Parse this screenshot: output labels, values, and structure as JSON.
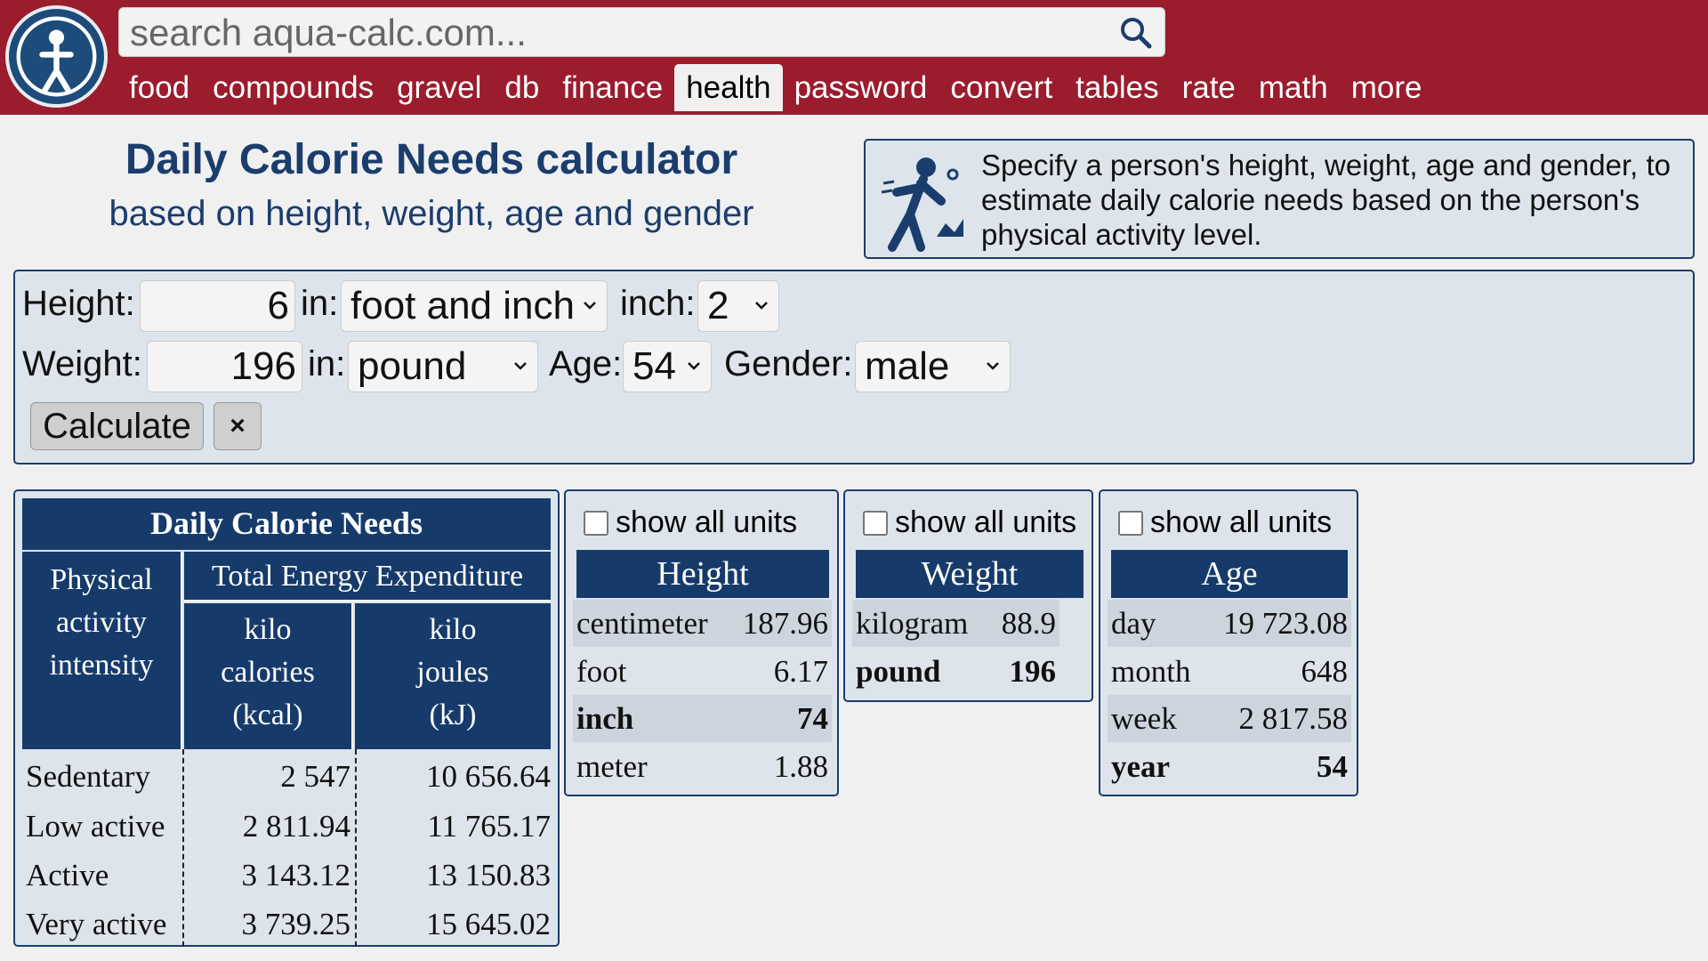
{
  "header": {
    "search_placeholder": "search aqua-calc.com...",
    "nav": [
      "food",
      "compounds",
      "gravel",
      "db",
      "finance",
      "health",
      "password",
      "convert",
      "tables",
      "rate",
      "math",
      "more"
    ],
    "active_nav": "health"
  },
  "page": {
    "title": "Daily Calorie Needs calculator",
    "subtitle": "based on height, weight, age and gender",
    "info": "Specify a person's height, weight, age and gender, to estimate daily calorie needs based on the person's physical activity level."
  },
  "form": {
    "height_label": "Height:",
    "height_value": "6",
    "in_label": "in:",
    "height_unit": "foot and inch",
    "inch_label": "inch:",
    "inch_value": "2",
    "weight_label": "Weight:",
    "weight_value": "196",
    "weight_unit": "pound",
    "age_label": "Age:",
    "age_value": "54",
    "gender_label": "Gender:",
    "gender_value": "male",
    "calculate_label": "Calculate",
    "clear_label": "×"
  },
  "calories": {
    "title": "Daily Calorie Needs",
    "col_activity": "Physical activity intensity",
    "col_tee": "Total Energy Expenditure",
    "col_kcal": "kilo calories (kcal)",
    "col_kj": "kilo joules (kJ)",
    "rows": [
      {
        "activity": "Sedentary",
        "kcal": "2 547",
        "kj": "10 656.64"
      },
      {
        "activity": "Low active",
        "kcal": "2 811.94",
        "kj": "11 765.17"
      },
      {
        "activity": "Active",
        "kcal": "3 143.12",
        "kj": "13 150.83"
      },
      {
        "activity": "Very active",
        "kcal": "3 739.25",
        "kj": "15 645.02"
      }
    ]
  },
  "show_all_units_label": "show all units",
  "height_units": {
    "title": "Height",
    "rows": [
      {
        "unit": "centimeter",
        "value": "187.96"
      },
      {
        "unit": "foot",
        "value": "6.17"
      },
      {
        "unit": "inch",
        "value": "74"
      },
      {
        "unit": "meter",
        "value": "1.88"
      }
    ]
  },
  "weight_units": {
    "title": "Weight",
    "rows": [
      {
        "unit": "kilogram",
        "value": "88.9"
      },
      {
        "unit": "pound",
        "value": "196"
      }
    ]
  },
  "age_units": {
    "title": "Age",
    "rows": [
      {
        "unit": "day",
        "value": "19 723.08"
      },
      {
        "unit": "month",
        "value": "648"
      },
      {
        "unit": "week",
        "value": "2 817.58"
      },
      {
        "unit": "year",
        "value": "54"
      }
    ]
  },
  "colors": {
    "brand_red": "#9b1c2c",
    "navy": "#163b6b",
    "panel": "#dde4ec"
  }
}
